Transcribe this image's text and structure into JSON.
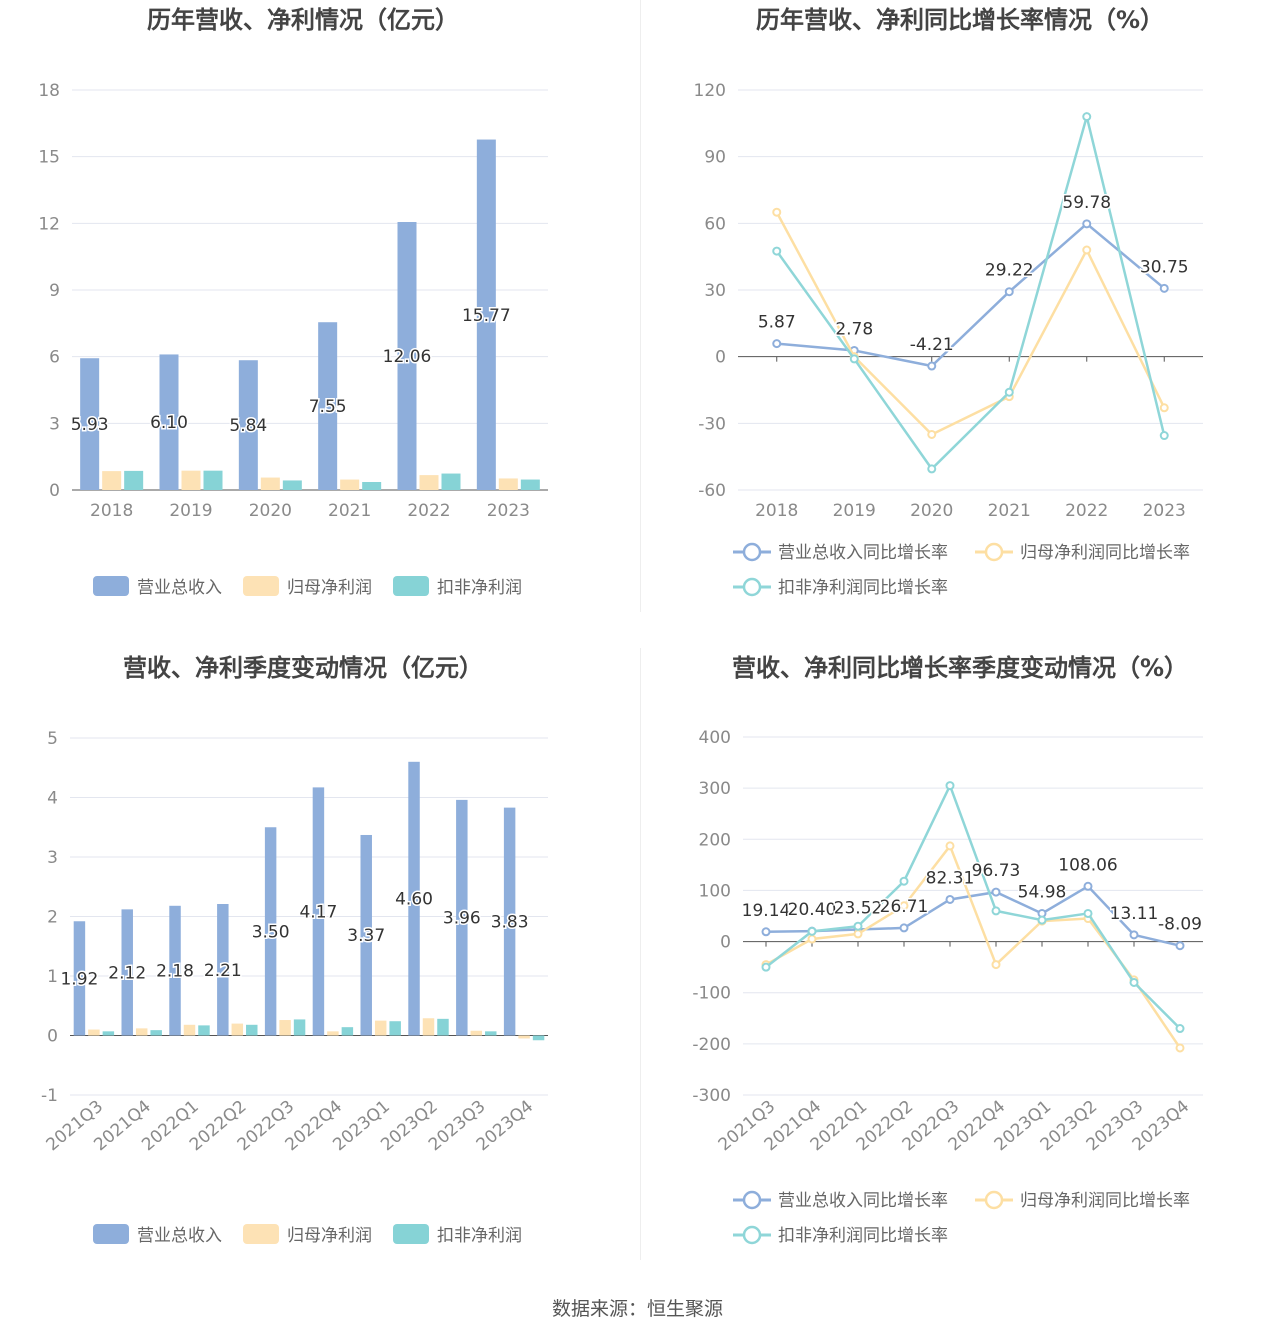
{
  "source_label": "数据来源：恒生聚源",
  "colors": {
    "revenue": "#8eaedb",
    "parent_profit": "#fde2b5",
    "deducted_profit": "#86d3d6",
    "revenue_line": "#8eaedb",
    "parent_line": "#fddfa3",
    "deducted_line": "#8fd6d8"
  },
  "chart_data": [
    {
      "type": "bar",
      "title": "历年营收、净利情况（亿元）",
      "categories": [
        "2018",
        "2019",
        "2020",
        "2021",
        "2022",
        "2023"
      ],
      "ylim": [
        0,
        18
      ],
      "yticks": [
        0,
        3,
        6,
        9,
        12,
        15,
        18
      ],
      "series": [
        {
          "name": "营业总收入",
          "values": [
            5.93,
            6.1,
            5.84,
            7.55,
            12.06,
            15.77
          ],
          "labels": [
            "5.93",
            "6.10",
            "5.84",
            "7.55",
            "12.06",
            "15.77"
          ]
        },
        {
          "name": "归母净利润",
          "values": [
            0.85,
            0.87,
            0.56,
            0.47,
            0.67,
            0.52
          ]
        },
        {
          "name": "扣非净利润",
          "values": [
            0.86,
            0.87,
            0.43,
            0.36,
            0.74,
            0.47
          ]
        }
      ],
      "legend": "bottom"
    },
    {
      "type": "line",
      "title": "历年营收、净利同比增长率情况（%）",
      "categories": [
        "2018",
        "2019",
        "2020",
        "2021",
        "2022",
        "2023"
      ],
      "ylim": [
        -60,
        120
      ],
      "yticks": [
        -60,
        -30,
        0,
        30,
        60,
        90,
        120
      ],
      "series": [
        {
          "name": "营业总收入同比增长率",
          "values": [
            5.87,
            2.78,
            -4.21,
            29.22,
            59.78,
            30.75
          ],
          "labels": [
            "5.87",
            "2.78",
            "-4.21",
            "29.22",
            "59.78",
            "30.75"
          ]
        },
        {
          "name": "归母净利润同比增长率",
          "values": [
            65,
            0,
            -35,
            -18,
            48,
            -23
          ]
        },
        {
          "name": "扣非净利润同比增长率",
          "values": [
            47.5,
            -1,
            -50.5,
            -16,
            108,
            -35.5
          ]
        }
      ],
      "legend": "bottom"
    },
    {
      "type": "bar",
      "title": "营收、净利季度变动情况（亿元）",
      "categories": [
        "2021Q3",
        "2021Q4",
        "2022Q1",
        "2022Q2",
        "2022Q3",
        "2022Q4",
        "2023Q1",
        "2023Q2",
        "2023Q3",
        "2023Q4"
      ],
      "ylim": [
        -1,
        5
      ],
      "yticks": [
        -1,
        0,
        1,
        2,
        3,
        4,
        5
      ],
      "series": [
        {
          "name": "营业总收入",
          "values": [
            1.92,
            2.12,
            2.18,
            2.21,
            3.5,
            4.17,
            3.37,
            4.6,
            3.96,
            3.83
          ],
          "labels": [
            "1.92",
            "2.12",
            "2.18",
            "2.21",
            "3.50",
            "4.17",
            "3.37",
            "4.60",
            "3.96",
            "3.83"
          ]
        },
        {
          "name": "归母净利润",
          "values": [
            0.1,
            0.12,
            0.18,
            0.2,
            0.26,
            0.07,
            0.25,
            0.29,
            0.08,
            -0.05
          ]
        },
        {
          "name": "扣非净利润",
          "values": [
            0.07,
            0.09,
            0.17,
            0.18,
            0.27,
            0.14,
            0.24,
            0.28,
            0.07,
            -0.08
          ]
        }
      ],
      "legend": "bottom"
    },
    {
      "type": "line",
      "title": "营收、净利同比增长率季度变动情况（%）",
      "categories": [
        "2021Q3",
        "2021Q4",
        "2022Q1",
        "2022Q2",
        "2022Q3",
        "2022Q4",
        "2023Q1",
        "2023Q2",
        "2023Q3",
        "2023Q4"
      ],
      "ylim": [
        -300,
        400
      ],
      "yticks": [
        -300,
        -200,
        -100,
        0,
        100,
        200,
        300,
        400
      ],
      "series": [
        {
          "name": "营业总收入同比增长率",
          "values": [
            19.14,
            20.4,
            23.52,
            26.71,
            82.31,
            96.73,
            54.98,
            108.06,
            13.11,
            -8.09
          ],
          "labels": [
            "19.14",
            "20.40",
            "23.52",
            "26.71",
            "82.31",
            "96.73",
            "54.98",
            "108.06",
            "13.11",
            "-8.09"
          ]
        },
        {
          "name": "归母净利润同比增长率",
          "values": [
            -45,
            5,
            15,
            70,
            187,
            -45,
            40,
            45,
            -75,
            -208
          ]
        },
        {
          "name": "扣非净利润同比增长率",
          "values": [
            -50,
            20,
            30,
            118,
            305,
            60,
            42,
            55,
            -80,
            -170
          ]
        }
      ],
      "legend": "bottom"
    }
  ]
}
